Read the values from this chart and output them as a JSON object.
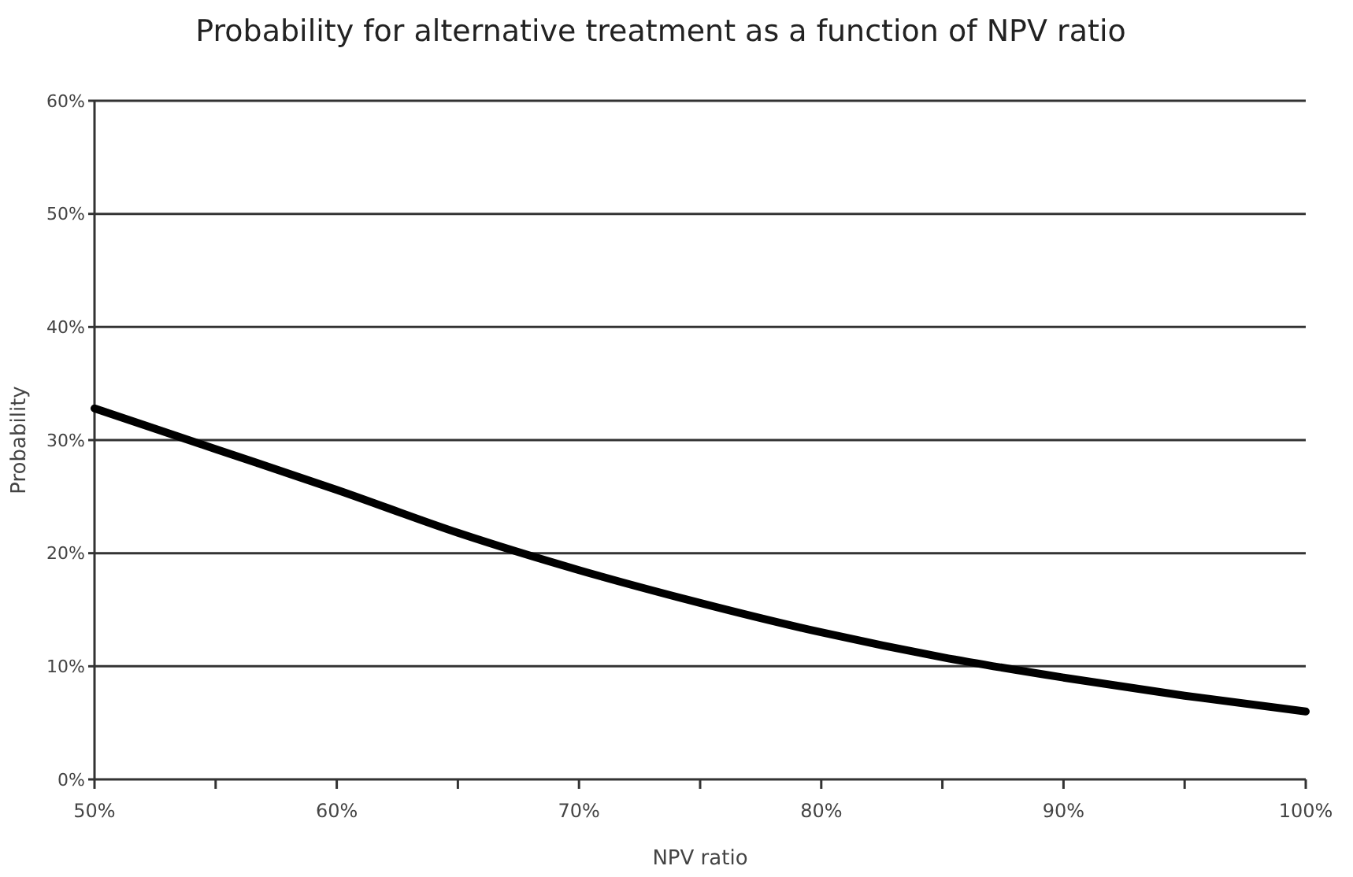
{
  "chart_data": {
    "type": "line",
    "title": "Probability for alternative treatment as a function of NPV ratio",
    "xlabel": "NPV ratio",
    "ylabel": "Probability",
    "x": [
      50,
      55,
      60,
      65,
      70,
      75,
      80,
      85,
      90,
      95,
      100
    ],
    "series": [
      {
        "color": "#000000",
        "values": [
          32.8,
          29.2,
          25.6,
          21.8,
          18.5,
          15.6,
          13,
          10.8,
          9,
          7.4,
          6
        ]
      }
    ],
    "xlim": [
      50,
      100
    ],
    "xticks": [
      {
        "value": 50,
        "label": "50%"
      },
      {
        "value": 55,
        "label": null
      },
      {
        "value": 60,
        "label": "60%"
      },
      {
        "value": 65,
        "label": null
      },
      {
        "value": 70,
        "label": "70%"
      },
      {
        "value": 75,
        "label": null
      },
      {
        "value": 80,
        "label": "80%"
      },
      {
        "value": 85,
        "label": null
      },
      {
        "value": 90,
        "label": "90%"
      },
      {
        "value": 95,
        "label": null
      },
      {
        "value": 100,
        "label": "100%"
      }
    ],
    "ylim": [
      0,
      60
    ],
    "yticks": [
      {
        "value": 0,
        "label": "0%"
      },
      {
        "value": 10,
        "label": "10%"
      },
      {
        "value": 20,
        "label": "20%"
      },
      {
        "value": 30,
        "label": "30%"
      },
      {
        "value": 40,
        "label": "40%"
      },
      {
        "value": 50,
        "label": "50%"
      },
      {
        "value": 60,
        "label": "60%"
      }
    ],
    "grid": "y",
    "marker": "none",
    "line_style": "solid"
  }
}
